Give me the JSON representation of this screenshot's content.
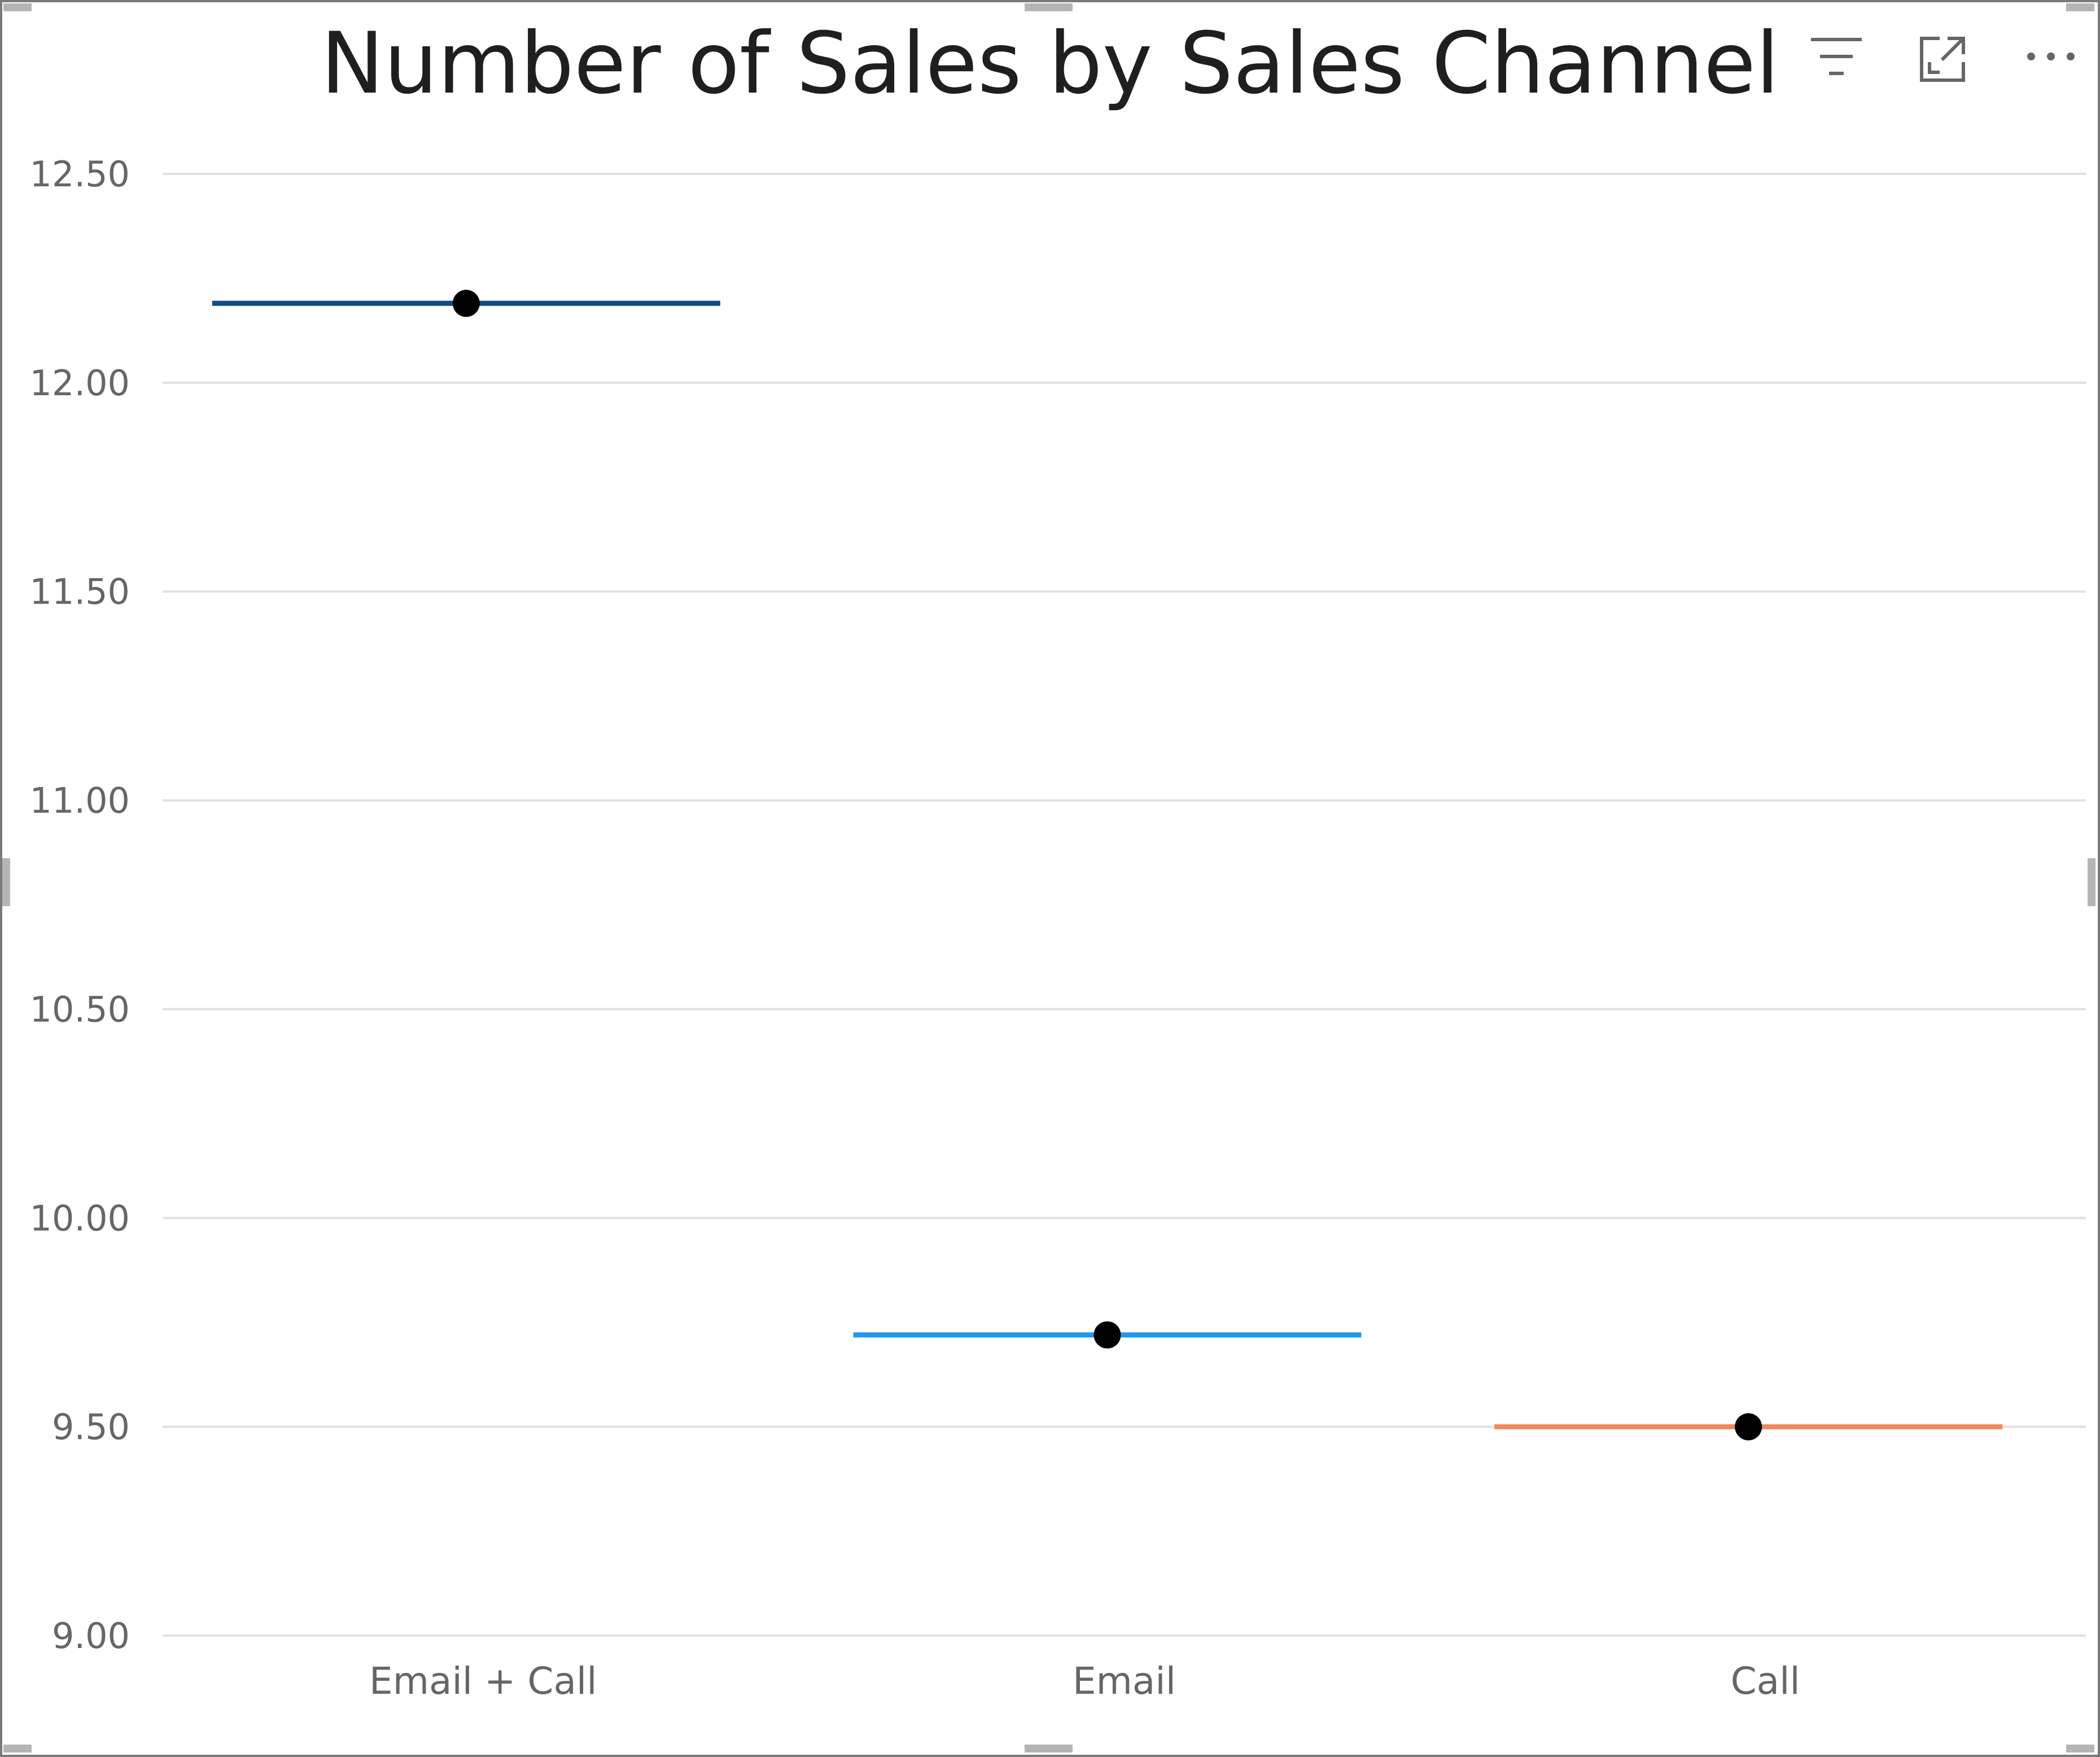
{
  "visual": {
    "title": "Number of Sales by Sales Channel",
    "header_icons": [
      "filter-icon",
      "focus-mode-icon",
      "more-options-icon"
    ]
  },
  "colors": {
    "gridline": "#e1e1e1",
    "marker": "#000000",
    "email_call": "#0f4c8a",
    "email": "#2196f3",
    "call": "#f08a5d"
  },
  "chart_data": {
    "type": "scatter",
    "title": "Number of Sales by Sales Channel",
    "xlabel": "",
    "ylabel": "",
    "categories": [
      "Email + Call",
      "Email",
      "Call"
    ],
    "values": [
      12.19,
      9.72,
      9.5
    ],
    "series_colors": [
      "#0f4c8a",
      "#2196f3",
      "#f08a5d"
    ],
    "ylim": [
      9.0,
      12.5
    ],
    "yticks": [
      12.5,
      12.0,
      11.5,
      11.0,
      10.5,
      10.0,
      9.5,
      9.0
    ],
    "ytick_labels": [
      "12.50",
      "12.00",
      "11.50",
      "11.00",
      "10.50",
      "10.00",
      "9.50",
      "9.00"
    ],
    "grid": true,
    "legend": "none"
  }
}
